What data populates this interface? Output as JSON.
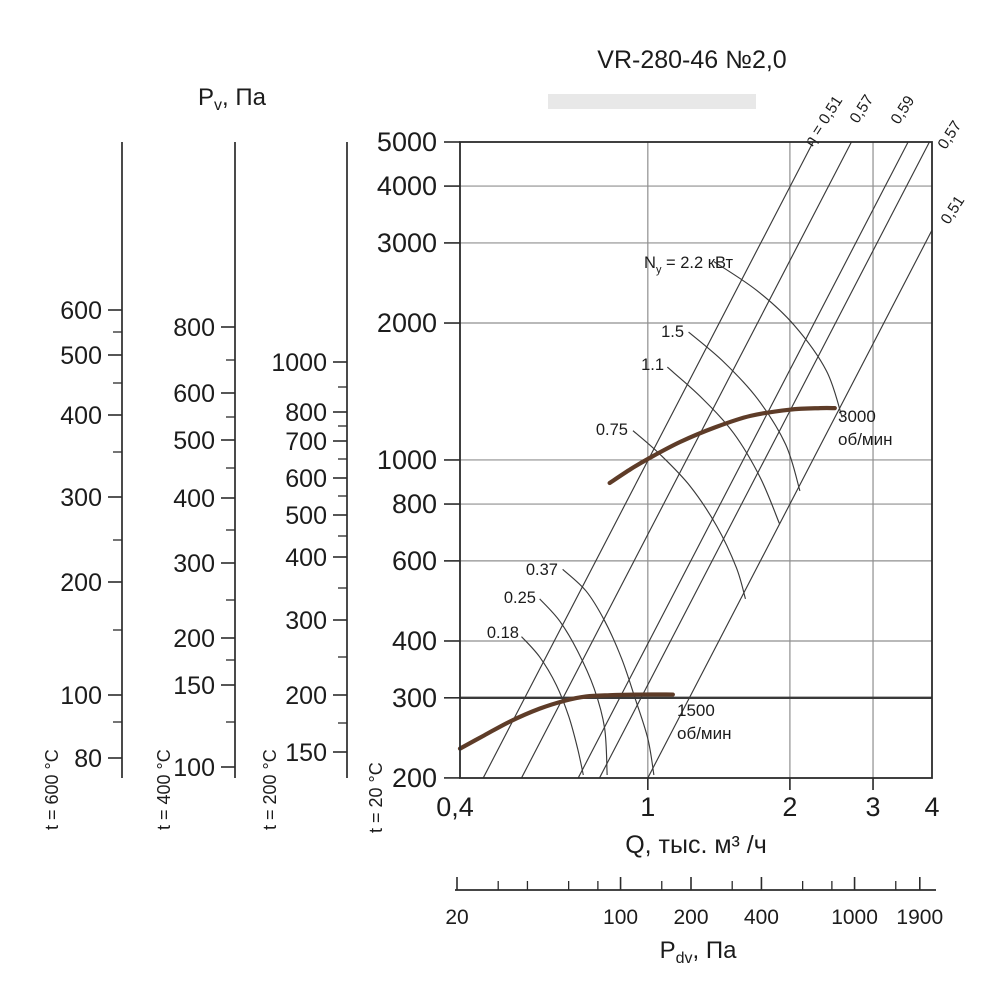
{
  "chart_data": {
    "type": "line",
    "title": "VR-280-46 №2,0",
    "x_axis": {
      "label": "Q, тыс. м³ /ч",
      "scale": "log",
      "range": [
        0.4,
        4
      ],
      "ticks": [
        {
          "v": 0.4,
          "t": "0,4"
        },
        {
          "v": 1,
          "t": "1"
        },
        {
          "v": 2,
          "t": "2"
        },
        {
          "v": 3,
          "t": "3"
        },
        {
          "v": 4,
          "t": "4"
        }
      ],
      "gridlines": [
        1,
        2,
        3
      ]
    },
    "y_axis": {
      "label_pre": "P",
      "label_sub": "v",
      "label_post": ", Па",
      "scale": "log",
      "range": [
        200,
        5000
      ],
      "ticks": [
        5000,
        4000,
        3000,
        2000,
        1000,
        800,
        600,
        400,
        300,
        200
      ],
      "gridlines": [
        4000,
        3000,
        2000,
        1000,
        800,
        600,
        400
      ],
      "dark_gridline": 300,
      "temp_note": "t = 20 °C"
    },
    "eta_lines": [
      {
        "label": "η = 0,51",
        "q_at_p5000": 2.24
      },
      {
        "label": "0,57",
        "q_at_p5000": 2.7
      },
      {
        "label": "0,59",
        "q_at_p5000": 3.56
      },
      {
        "label": "0,57",
        "q_at_p5000": 3.95
      },
      {
        "label": "0,51",
        "q_at_p5000": 5.0
      }
    ],
    "power_curves": [
      {
        "label_pre": "N",
        "label_sub": "у",
        "label_post": " = 2.2 кВт",
        "points": [
          [
            1.38,
            2730
          ],
          [
            1.7,
            2360
          ],
          [
            2.04,
            1980
          ],
          [
            2.39,
            1570
          ],
          [
            2.58,
            1240
          ]
        ]
      },
      {
        "label": "1.5",
        "points": [
          [
            1.22,
            1910
          ],
          [
            1.45,
            1640
          ],
          [
            1.71,
            1360
          ],
          [
            1.96,
            1080
          ],
          [
            2.1,
            855
          ]
        ]
      },
      {
        "label": "1.1",
        "points": [
          [
            1.1,
            1600
          ],
          [
            1.3,
            1370
          ],
          [
            1.52,
            1145
          ],
          [
            1.73,
            915
          ],
          [
            1.9,
            725
          ]
        ]
      },
      {
        "label": "0.75",
        "points": [
          [
            0.93,
            1160
          ],
          [
            1.06,
            1030
          ],
          [
            1.23,
            875
          ],
          [
            1.4,
            715
          ],
          [
            1.54,
            580
          ],
          [
            1.61,
            495
          ]
        ]
      },
      {
        "label": "0.37",
        "points": [
          [
            0.66,
            575
          ],
          [
            0.74,
            515
          ],
          [
            0.81,
            443
          ],
          [
            0.88,
            366
          ],
          [
            0.94,
            299
          ],
          [
            1.0,
            244
          ],
          [
            1.03,
            203
          ]
        ]
      },
      {
        "label": "0.25",
        "points": [
          [
            0.59,
            495
          ],
          [
            0.65,
            443
          ],
          [
            0.71,
            380
          ],
          [
            0.77,
            314
          ],
          [
            0.81,
            257
          ],
          [
            0.82,
            203
          ]
        ]
      },
      {
        "label": "0.18",
        "points": [
          [
            0.54,
            409
          ],
          [
            0.59,
            369
          ],
          [
            0.64,
            320
          ],
          [
            0.68,
            273
          ],
          [
            0.71,
            232
          ],
          [
            0.73,
            203
          ]
        ]
      }
    ],
    "speed_curves": [
      {
        "label_lines": [
          "3000",
          "об/мин"
        ],
        "points": [
          [
            0.83,
            890
          ],
          [
            0.92,
            955
          ],
          [
            1.0,
            1005
          ],
          [
            1.17,
            1095
          ],
          [
            1.39,
            1180
          ],
          [
            1.65,
            1250
          ],
          [
            2.0,
            1290
          ],
          [
            2.32,
            1300
          ],
          [
            2.49,
            1300
          ]
        ]
      },
      {
        "label_lines": [
          "1500",
          "об/мин"
        ],
        "points": [
          [
            0.4,
            232
          ],
          [
            0.45,
            248
          ],
          [
            0.51,
            266
          ],
          [
            0.59,
            284
          ],
          [
            0.67,
            296
          ],
          [
            0.74,
            302
          ],
          [
            0.83,
            304
          ],
          [
            0.96,
            305
          ],
          [
            1.13,
            305
          ]
        ]
      }
    ],
    "temp_scales": [
      {
        "caption": "t = 600 °C",
        "major": [
          [
            600,
            310
          ],
          [
            500,
            355
          ],
          [
            400,
            415
          ],
          [
            300,
            497
          ],
          [
            200,
            582
          ],
          [
            100,
            695
          ],
          [
            80,
            758
          ]
        ],
        "minor": [
          332,
          383,
          452,
          540,
          630,
          722
        ]
      },
      {
        "caption": "t = 400 °C",
        "major": [
          [
            800,
            327
          ],
          [
            600,
            393
          ],
          [
            500,
            440
          ],
          [
            400,
            498
          ],
          [
            300,
            563
          ],
          [
            200,
            638
          ],
          [
            150,
            685
          ],
          [
            100,
            767
          ]
        ],
        "minor": [
          360,
          417,
          468,
          530,
          600,
          660,
          722
        ]
      },
      {
        "caption": "t = 200 °C",
        "major": [
          [
            1000,
            362
          ],
          [
            800,
            412
          ],
          [
            700,
            441
          ],
          [
            600,
            478
          ],
          [
            500,
            515
          ],
          [
            400,
            557
          ],
          [
            300,
            620
          ],
          [
            200,
            695
          ],
          [
            150,
            752
          ]
        ],
        "minor": [
          387,
          426,
          459,
          496,
          536,
          588,
          657,
          723
        ]
      }
    ],
    "pv_title": {
      "pre": "P",
      "sub": "v",
      "post": ", Па"
    },
    "pdv_axis": {
      "label_pre": "P",
      "label_sub": "dv",
      "label_post": ", Па",
      "major": [
        20,
        100,
        200,
        400,
        1000,
        1900
      ],
      "minor": [
        30,
        40,
        60,
        80,
        150,
        300,
        600,
        800,
        1500
      ]
    },
    "colors": {
      "ink": "#1c1c1c",
      "frame": "#2b2b2b",
      "grid": "#8f8f8f",
      "thin_curve": "#3a3a3a",
      "speed_curve": "#5e3c28",
      "artifact_band": "#d9d9d9"
    }
  }
}
